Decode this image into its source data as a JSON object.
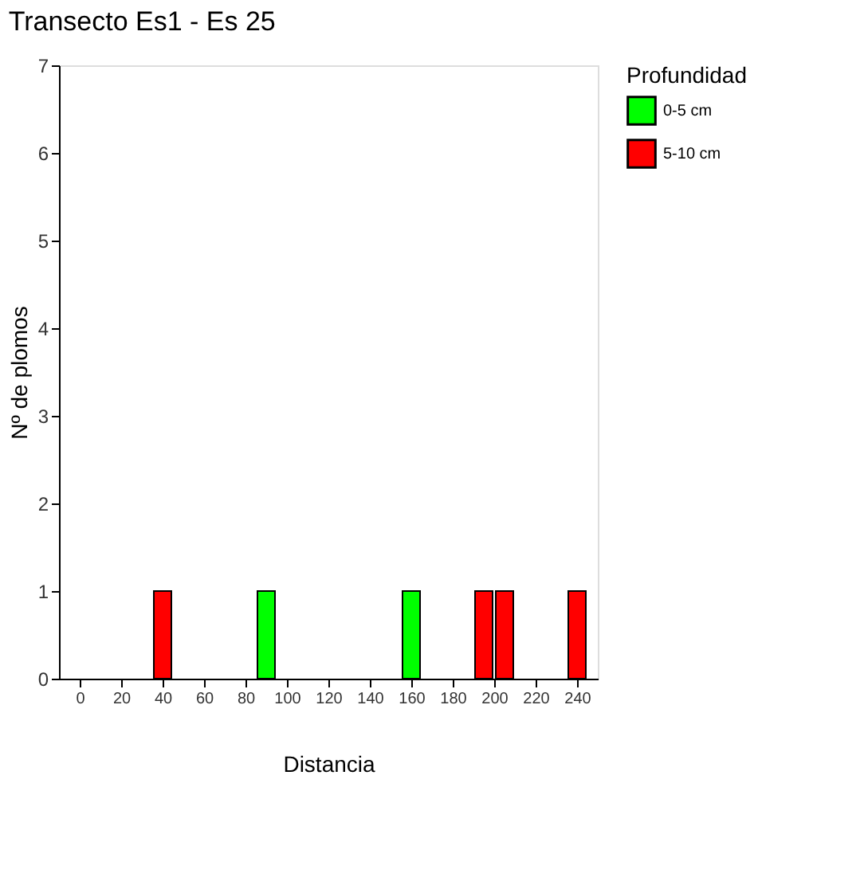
{
  "chart_data": {
    "type": "bar",
    "title": "Transecto Es1 - Es 25",
    "xlabel": "Distancia",
    "ylabel": "Nº de plomos",
    "legend_title": "Profundidad",
    "series": [
      {
        "name": "0-5 cm",
        "color": "#00ff00",
        "x": [
          90,
          160
        ],
        "values": [
          1,
          1
        ]
      },
      {
        "name": "5-10 cm",
        "color": "#ff0000",
        "x": [
          40,
          195,
          205,
          240
        ],
        "values": [
          1,
          1,
          1,
          1
        ]
      }
    ],
    "xlim": [
      -10,
      250
    ],
    "xticks": [
      0,
      20,
      40,
      60,
      80,
      100,
      120,
      140,
      160,
      180,
      200,
      220,
      240
    ],
    "ylim": [
      0,
      7
    ],
    "yticks": [
      0,
      1,
      2,
      3,
      4,
      5,
      6,
      7
    ],
    "grid": false,
    "legend": "right"
  }
}
